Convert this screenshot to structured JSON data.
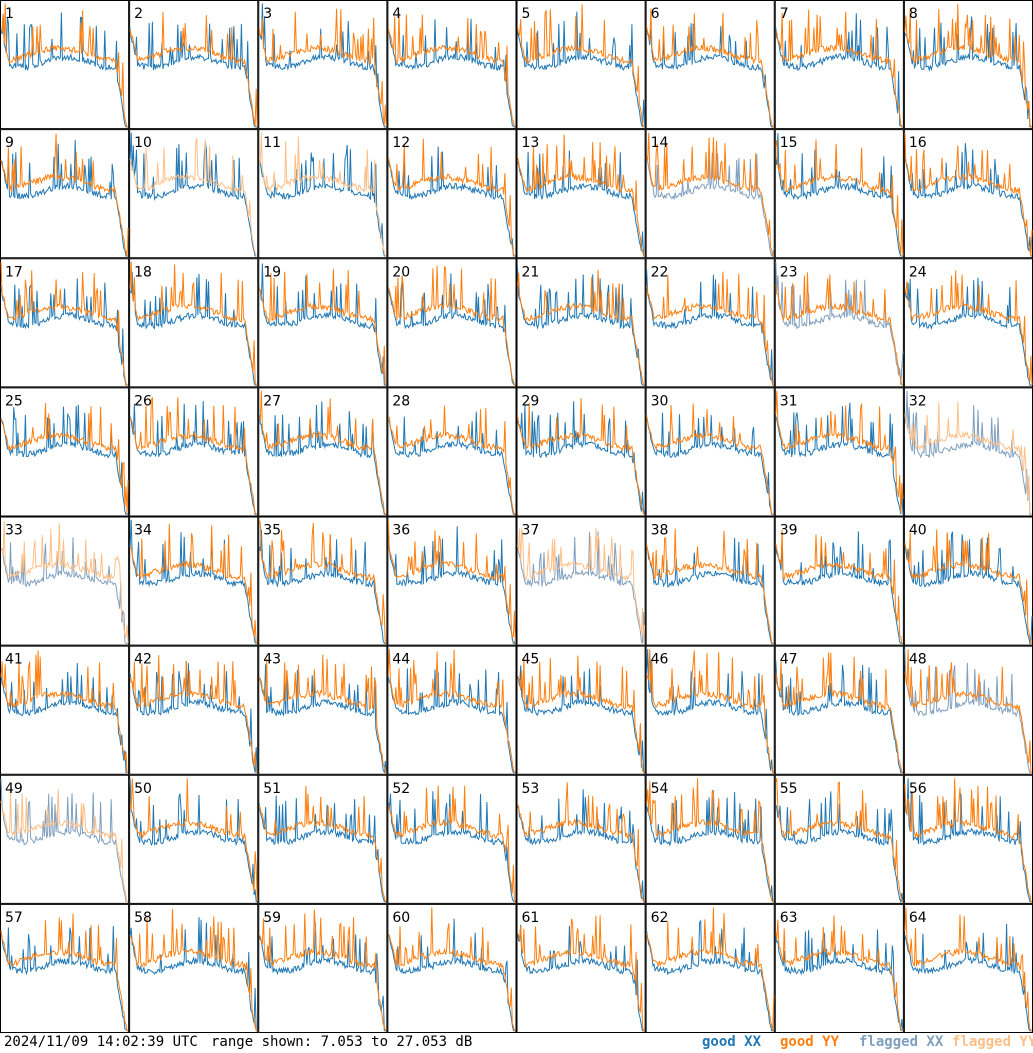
{
  "chart_data": {
    "type": "line",
    "grid": {
      "rows": 8,
      "cols": 8
    },
    "panels": [
      "1",
      "2",
      "3",
      "4",
      "5",
      "6",
      "7",
      "8",
      "9",
      "10",
      "11",
      "12",
      "13",
      "14",
      "15",
      "16",
      "17",
      "18",
      "19",
      "20",
      "21",
      "22",
      "23",
      "24",
      "25",
      "26",
      "27",
      "28",
      "29",
      "30",
      "31",
      "32",
      "33",
      "34",
      "35",
      "36",
      "37",
      "38",
      "39",
      "40",
      "41",
      "42",
      "43",
      "44",
      "45",
      "46",
      "47",
      "48",
      "49",
      "50",
      "51",
      "52",
      "53",
      "54",
      "55",
      "56",
      "57",
      "58",
      "59",
      "60",
      "61",
      "62",
      "63",
      "64"
    ],
    "series": [
      {
        "name": "good XX",
        "color": "#1f77b4"
      },
      {
        "name": "good YY",
        "color": "#ff7f0e"
      },
      {
        "name": "flagged XX",
        "color": "#7f9fbf"
      },
      {
        "name": "flagged YY",
        "color": "#ffbf87"
      }
    ],
    "ylim": [
      7.053,
      27.053
    ],
    "flags": {
      "yy_flagged": [
        10,
        11,
        32,
        33,
        37,
        49
      ],
      "xx_flagged": [
        14,
        23,
        32,
        33,
        37,
        48,
        49
      ]
    },
    "timestamp": "2024/11/09 14:02:39 UTC",
    "range_text": "range shown: 7.053 to 27.053 dB"
  }
}
